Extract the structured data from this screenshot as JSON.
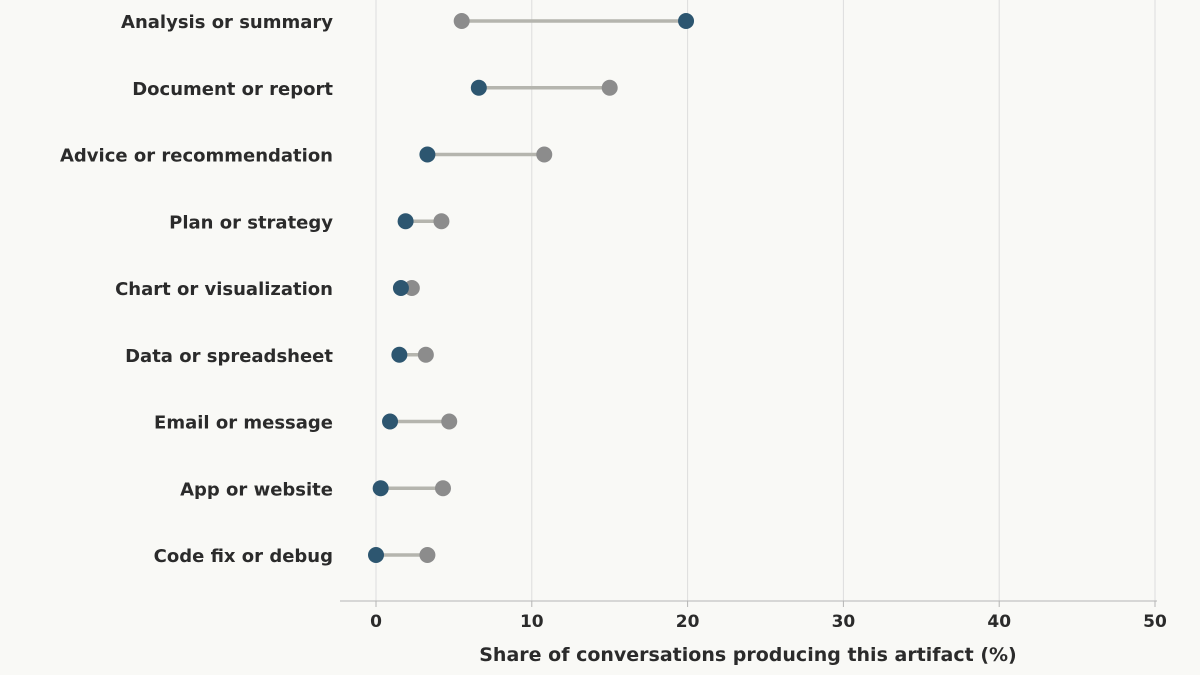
{
  "chart_data": {
    "type": "dumbbell",
    "categories": [
      "Analysis or summary",
      "Document or report",
      "Advice or recommendation",
      "Plan or strategy",
      "Chart or visualization",
      "Data or spreadsheet",
      "Email or message",
      "App or website",
      "Code fix or debug"
    ],
    "series": [
      {
        "color": "#8c8c8c",
        "values": [
          5.5,
          15.0,
          10.8,
          4.2,
          2.3,
          3.2,
          4.7,
          4.3,
          3.3
        ]
      },
      {
        "color": "#2d5670",
        "values": [
          19.9,
          6.6,
          3.3,
          1.9,
          1.6,
          1.5,
          0.9,
          0.3,
          0.0
        ]
      }
    ],
    "title": "",
    "xlabel": "Share of conversations producing this artifact (%)",
    "ylabel": "",
    "xlim": [
      0,
      50
    ],
    "xticks": [
      0,
      10,
      20,
      30,
      40,
      50
    ],
    "grid": "vertical",
    "connector_color": "#b5b5ae",
    "gridline_color": "#dddddd",
    "axis_color": "#b5b5b5"
  }
}
